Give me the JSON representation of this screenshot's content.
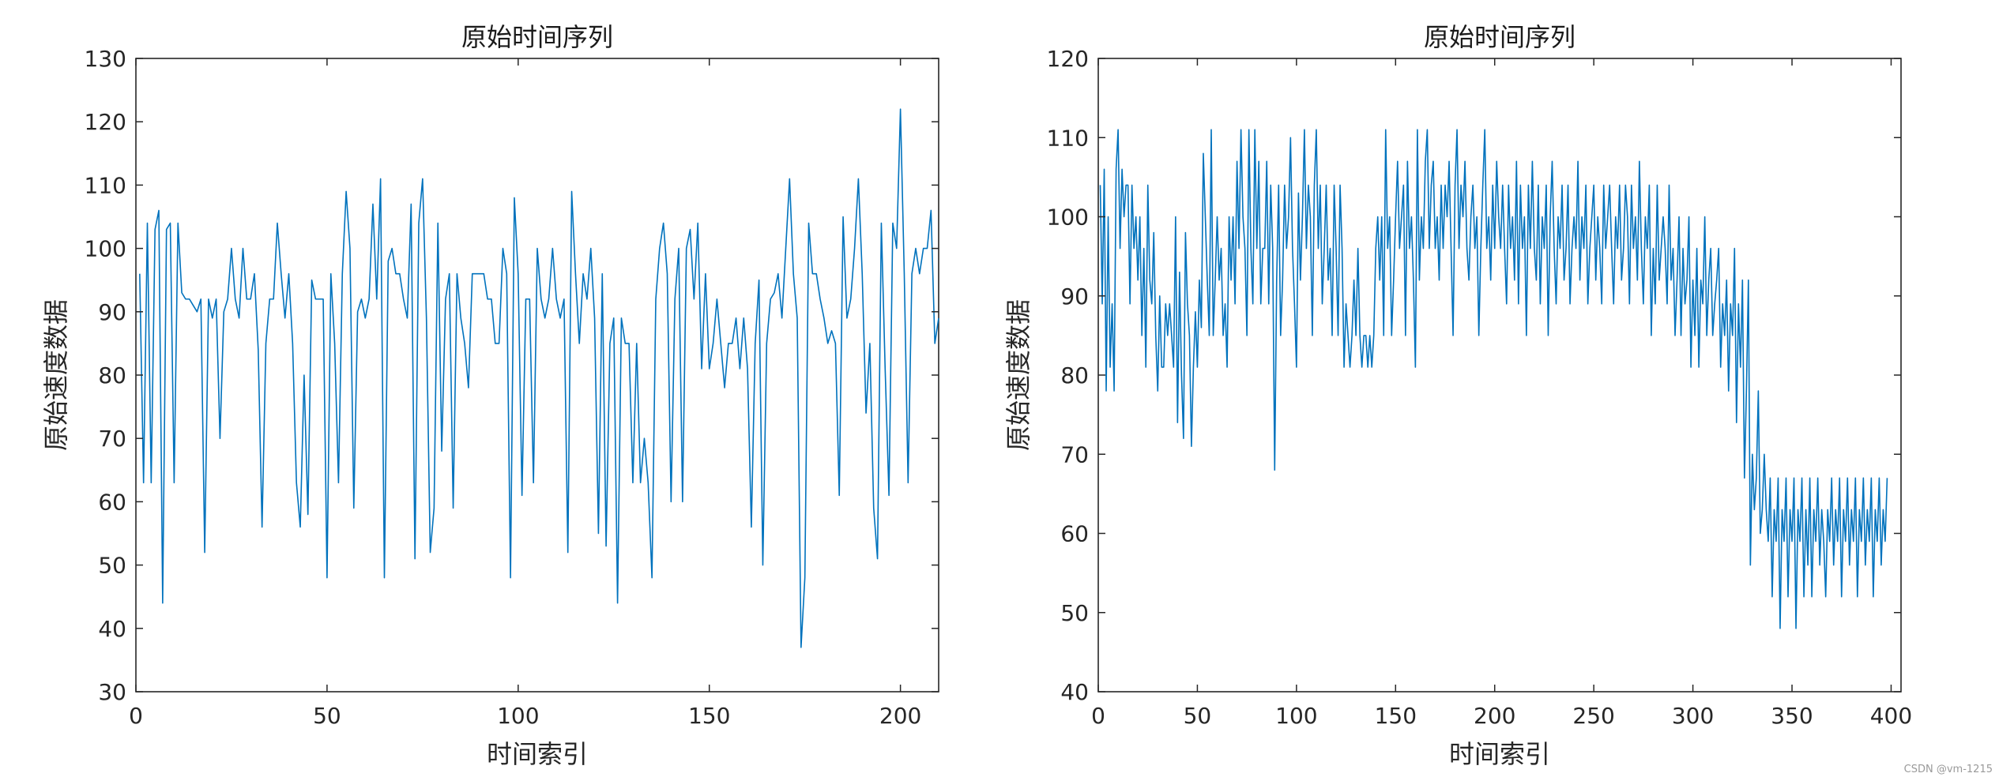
{
  "watermark": "CSDN @vm-1215",
  "line_color": "#0072BD",
  "chart_data": [
    {
      "type": "line",
      "title": "原始时间序列",
      "xlabel": "时间索引",
      "ylabel": "原始速度数据",
      "xlim": [
        0,
        210
      ],
      "ylim": [
        30,
        130
      ],
      "xticks": [
        0,
        50,
        100,
        150,
        200
      ],
      "yticks": [
        30,
        40,
        50,
        60,
        70,
        80,
        90,
        100,
        110,
        120,
        130
      ],
      "grid": false,
      "series": [
        {
          "color": "#0072BD",
          "x_start": 1,
          "values": [
            96,
            63,
            104,
            63,
            103,
            106,
            44,
            103,
            104,
            63,
            104,
            93,
            92,
            92,
            91,
            90,
            92,
            52,
            92,
            89,
            92,
            70,
            90,
            92,
            100,
            92,
            89,
            100,
            92,
            92,
            96,
            84,
            56,
            85,
            92,
            92,
            104,
            96,
            89,
            96,
            85,
            63,
            56,
            80,
            58,
            95,
            92,
            92,
            92,
            48,
            96,
            85,
            63,
            96,
            109,
            100,
            59,
            90,
            92,
            89,
            92,
            107,
            92,
            111,
            48,
            98,
            100,
            96,
            96,
            92,
            89,
            107,
            51,
            104,
            111,
            89,
            52,
            59,
            104,
            68,
            92,
            96,
            59,
            96,
            89,
            85,
            78,
            96,
            96,
            96,
            96,
            92,
            92,
            85,
            85,
            100,
            96,
            48,
            108,
            96,
            61,
            92,
            92,
            63,
            100,
            92,
            89,
            92,
            100,
            92,
            89,
            92,
            52,
            109,
            96,
            85,
            96,
            92,
            100,
            89,
            55,
            96,
            53,
            85,
            89,
            44,
            89,
            85,
            85,
            63,
            85,
            63,
            70,
            63,
            48,
            92,
            100,
            104,
            96,
            60,
            92,
            100,
            60,
            100,
            103,
            92,
            104,
            81,
            96,
            81,
            85,
            92,
            85,
            78,
            85,
            85,
            89,
            81,
            89,
            81,
            56,
            85,
            95,
            50,
            85,
            92,
            93,
            96,
            89,
            100,
            111,
            96,
            89,
            37,
            48,
            104,
            96,
            96,
            92,
            89,
            85,
            87,
            85,
            61,
            105,
            89,
            92,
            100,
            111,
            96,
            74,
            85,
            59,
            51,
            104,
            81,
            61,
            104,
            100,
            122,
            96,
            63,
            96,
            100,
            96,
            100,
            100,
            106,
            85,
            89
          ]
        }
      ]
    },
    {
      "type": "line",
      "title": "原始时间序列",
      "xlabel": "时间索引",
      "ylabel": "原始速度数据",
      "xlim": [
        0,
        405
      ],
      "ylim": [
        40,
        120
      ],
      "xticks": [
        0,
        50,
        100,
        150,
        200,
        250,
        300,
        350,
        400
      ],
      "yticks": [
        40,
        50,
        60,
        70,
        80,
        90,
        100,
        110,
        120
      ],
      "grid": false,
      "series": [
        {
          "color": "#0072BD",
          "x_start": 1,
          "values": [
            104,
            89,
            106,
            78,
            100,
            81,
            89,
            78,
            106,
            111,
            96,
            106,
            100,
            104,
            104,
            89,
            104,
            96,
            100,
            92,
            100,
            85,
            96,
            81,
            104,
            92,
            89,
            98,
            85,
            78,
            90,
            81,
            81,
            89,
            85,
            89,
            85,
            81,
            100,
            74,
            93,
            80,
            72,
            98,
            89,
            85,
            71,
            81,
            88,
            81,
            92,
            86,
            108,
            100,
            92,
            85,
            111,
            85,
            92,
            100,
            92,
            96,
            85,
            89,
            81,
            100,
            92,
            100,
            89,
            107,
            96,
            111,
            100,
            96,
            85,
            111,
            96,
            89,
            111,
            96,
            107,
            89,
            96,
            96,
            107,
            89,
            104,
            96,
            68,
            92,
            104,
            85,
            92,
            104,
            96,
            100,
            110,
            96,
            89,
            81,
            103,
            92,
            100,
            111,
            96,
            104,
            100,
            85,
            104,
            111,
            96,
            104,
            89,
            96,
            104,
            92,
            96,
            85,
            104,
            96,
            85,
            104,
            96,
            81,
            89,
            85,
            81,
            85,
            92,
            85,
            96,
            85,
            81,
            85,
            85,
            81,
            85,
            81,
            85,
            96,
            100,
            92,
            100,
            85,
            111,
            96,
            100,
            85,
            92,
            100,
            107,
            96,
            100,
            104,
            85,
            107,
            96,
            100,
            92,
            81,
            111,
            92,
            100,
            96,
            107,
            111,
            96,
            104,
            107,
            96,
            100,
            92,
            104,
            96,
            104,
            100,
            107,
            96,
            85,
            104,
            111,
            96,
            104,
            100,
            107,
            96,
            92,
            100,
            104,
            96,
            100,
            85,
            96,
            104,
            111,
            96,
            100,
            92,
            104,
            96,
            107,
            100,
            96,
            104,
            96,
            89,
            104,
            96,
            100,
            92,
            107,
            89,
            104,
            96,
            100,
            85,
            104,
            96,
            107,
            96,
            92,
            104,
            89,
            100,
            96,
            104,
            85,
            100,
            107,
            96,
            89,
            100,
            96,
            104,
            92,
            96,
            104,
            89,
            96,
            100,
            96,
            107,
            92,
            100,
            96,
            104,
            89,
            96,
            100,
            104,
            92,
            100,
            96,
            89,
            104,
            96,
            100,
            104,
            96,
            89,
            100,
            96,
            104,
            92,
            96,
            104,
            100,
            89,
            104,
            96,
            100,
            92,
            107,
            96,
            89,
            100,
            96,
            104,
            85,
            96,
            89,
            104,
            92,
            96,
            100,
            96,
            89,
            104,
            92,
            96,
            85,
            92,
            100,
            85,
            96,
            89,
            92,
            100,
            81,
            92,
            85,
            96,
            81,
            92,
            89,
            100,
            85,
            92,
            96,
            85,
            89,
            92,
            96,
            81,
            89,
            85,
            92,
            78,
            89,
            85,
            96,
            74,
            89,
            81,
            92,
            67,
            78,
            92,
            56,
            70,
            63,
            67,
            78,
            60,
            63,
            70,
            63,
            59,
            67,
            52,
            63,
            59,
            67,
            48,
            63,
            59,
            67,
            52,
            63,
            59,
            67,
            48,
            63,
            59,
            67,
            52,
            63,
            56,
            67,
            52,
            63,
            59,
            67,
            56,
            63,
            59,
            52,
            63,
            59,
            67,
            56,
            63,
            59,
            67,
            52,
            63,
            59,
            67,
            56,
            63,
            59,
            67,
            52,
            63,
            59,
            67,
            56,
            63,
            59,
            67,
            52,
            63,
            59,
            67,
            56,
            63,
            59,
            67
          ]
        }
      ]
    }
  ]
}
